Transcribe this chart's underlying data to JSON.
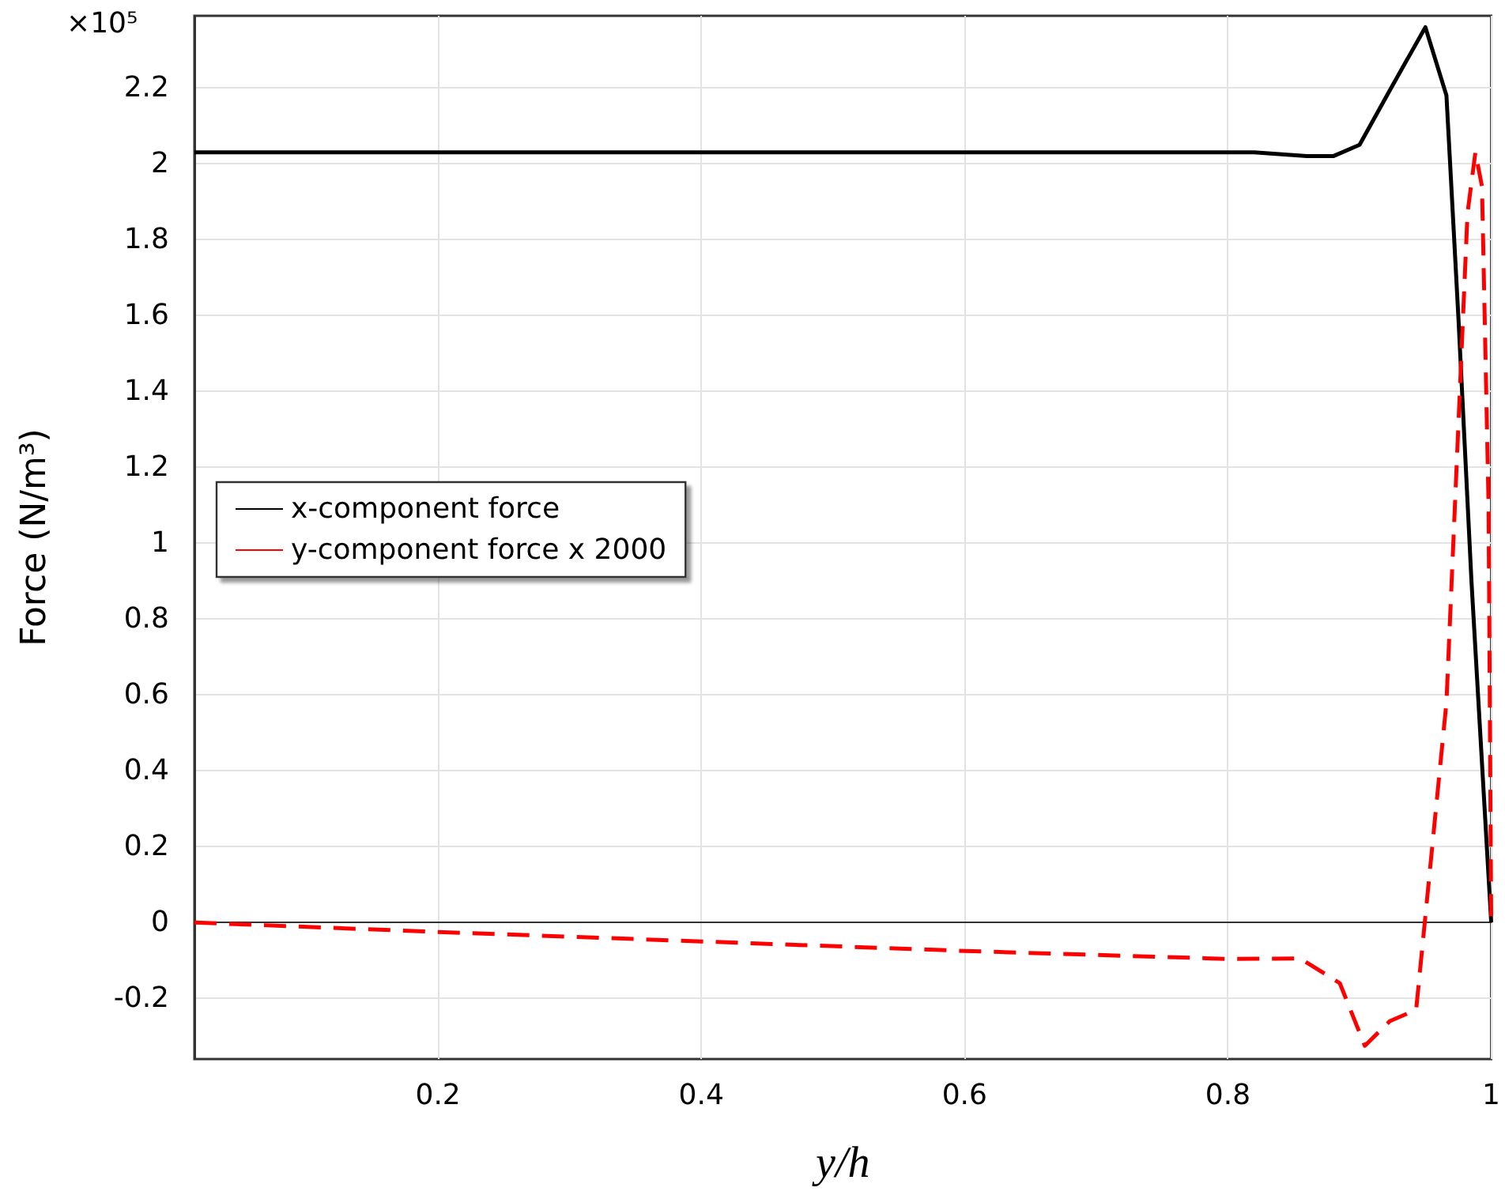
{
  "chart_data": {
    "type": "line",
    "xlabel": "y/h",
    "ylabel": "Force (N/m³)",
    "annotations": [
      "×10⁵"
    ],
    "series": [
      {
        "name": "x-component force",
        "color": "#000000",
        "line_style": "solid",
        "x": [
          0.015,
          0.2,
          0.4,
          0.6,
          0.8,
          0.82,
          0.86,
          0.88,
          0.9,
          0.924,
          0.95,
          0.966,
          0.975,
          0.985,
          1.0
        ],
        "values": [
          2.03,
          2.03,
          2.03,
          2.03,
          2.03,
          2.03,
          2.02,
          2.02,
          2.05,
          2.2,
          2.36,
          2.18,
          1.6,
          0.9,
          0
        ]
      },
      {
        "name": "y-component force x 2000",
        "color": "#ff0000",
        "line_style": "dashed",
        "x": [
          0.015,
          0.2,
          0.4,
          0.6,
          0.8,
          0.855,
          0.885,
          0.904,
          0.923,
          0.943,
          0.966,
          0.982,
          0.988,
          0.993,
          0.998,
          1.0
        ],
        "values": [
          0,
          -0.025,
          -0.05,
          -0.075,
          -0.096,
          -0.095,
          -0.16,
          -0.325,
          -0.26,
          -0.23,
          0.58,
          1.87,
          2.03,
          1.94,
          1.1,
          0
        ]
      }
    ],
    "xlim": [
      0.015,
      1
    ],
    "xticks": [
      0.2,
      0.4,
      0.6,
      0.8,
      1
    ],
    "ylim": [
      -0.36,
      2.39
    ],
    "yticks": [
      -0.2,
      0,
      0.2,
      0.4,
      0.6,
      0.8,
      1,
      1.2,
      1.4,
      1.6,
      1.8,
      2,
      2.2
    ],
    "grid": true,
    "legend": "left"
  }
}
